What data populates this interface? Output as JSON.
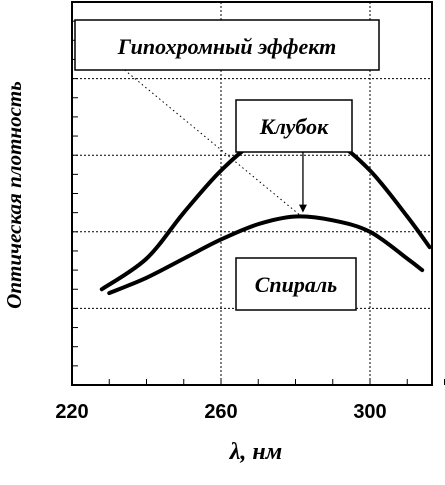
{
  "chart_data": {
    "type": "line",
    "xlabel": "λ, нм",
    "ylabel": "Оптическая плотность",
    "xlim": [
      220,
      325
    ],
    "ylim": [
      0,
      1
    ],
    "x_ticks": [
      "220",
      "260",
      "300"
    ],
    "x_tick_values": [
      220,
      260,
      300
    ],
    "grid": true,
    "annotations": [
      "Гипохромный эффект",
      "Клубок",
      "Спираль"
    ],
    "series": [
      {
        "name": "Клубок",
        "x": [
          228,
          240,
          250,
          260,
          270,
          280,
          290,
          300,
          310,
          316
        ],
        "y": [
          0.25,
          0.33,
          0.45,
          0.56,
          0.64,
          0.67,
          0.64,
          0.56,
          0.44,
          0.36
        ]
      },
      {
        "name": "Спираль",
        "x": [
          230,
          240,
          250,
          260,
          270,
          280,
          290,
          300,
          310,
          314
        ],
        "y": [
          0.24,
          0.28,
          0.33,
          0.38,
          0.42,
          0.44,
          0.43,
          0.4,
          0.33,
          0.3
        ]
      }
    ],
    "arrow": {
      "x": 282,
      "from_y": 0.665,
      "to_y": 0.445
    },
    "dotted_pointer": {
      "from": [
        222,
        0.92
      ],
      "to": [
        281,
        0.445
      ]
    }
  }
}
